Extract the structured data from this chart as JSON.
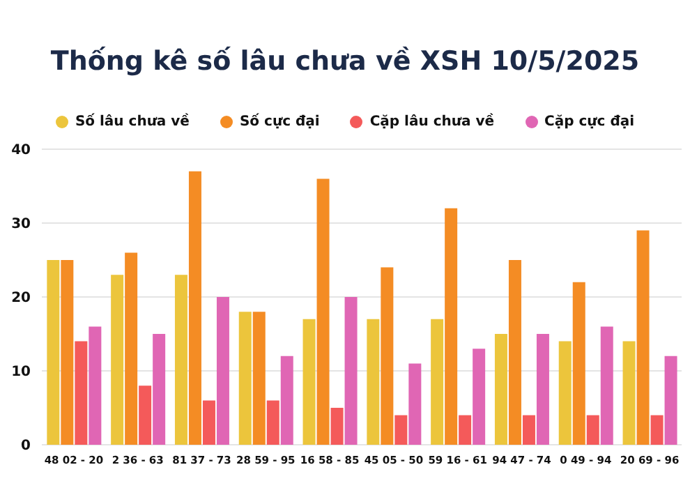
{
  "chart_data": {
    "type": "bar",
    "title": "Thống kê số lâu chưa về XSH 10/5/2025",
    "categories": [
      "48 02 - 20",
      "2 36 - 63",
      "81 37 - 73",
      "28 59 - 95",
      "16 58 - 85",
      "45 05 - 50",
      "59 16 - 61",
      "94 47 - 74",
      "0 49 - 94",
      "20 69 - 96"
    ],
    "series": [
      {
        "name": "Số lâu chưa về",
        "color": "#ecc53c",
        "values": [
          25,
          23,
          23,
          18,
          17,
          17,
          17,
          15,
          14,
          14
        ]
      },
      {
        "name": "Số cực đại",
        "color": "#f48c24",
        "values": [
          25,
          26,
          37,
          18,
          36,
          24,
          32,
          25,
          22,
          29
        ]
      },
      {
        "name": "Cặp lâu chưa về",
        "color": "#f45a5a",
        "values": [
          14,
          8,
          6,
          6,
          5,
          4,
          4,
          4,
          4,
          4
        ]
      },
      {
        "name": "Cặp cực đại",
        "color": "#e066b4",
        "values": [
          16,
          15,
          20,
          12,
          20,
          11,
          13,
          15,
          16,
          12
        ]
      }
    ],
    "ylim": [
      0,
      40
    ],
    "yticks": [
      0,
      10,
      20,
      30,
      40
    ],
    "grid": "y",
    "legend": "top"
  }
}
